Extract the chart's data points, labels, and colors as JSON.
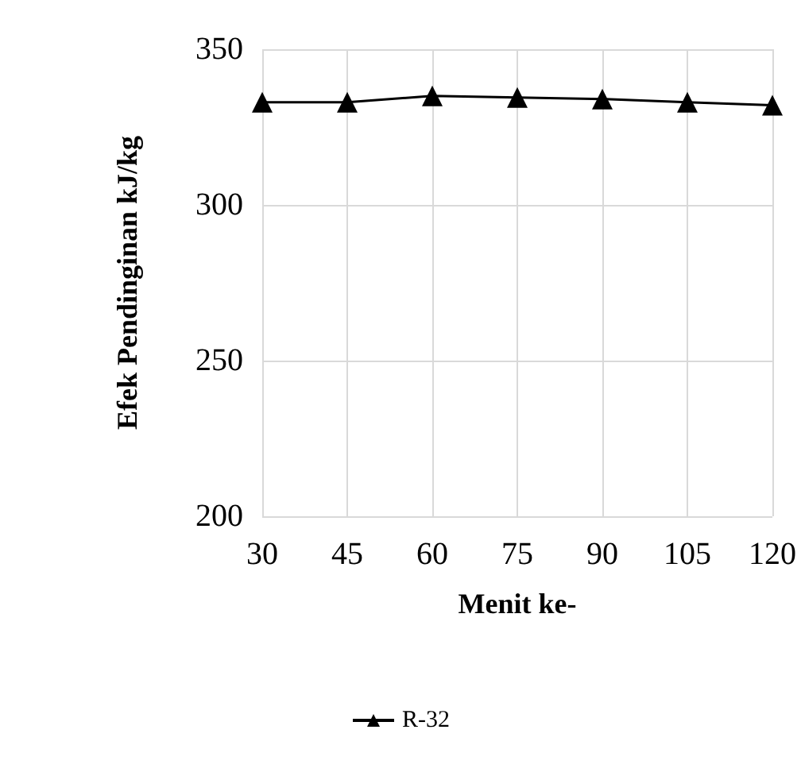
{
  "chart_data": {
    "type": "line",
    "xlabel": "Menit ke-",
    "ylabel": "Efek Pendinginan kJ/kg",
    "categories": [
      "30",
      "45",
      "60",
      "75",
      "90",
      "105",
      "120"
    ],
    "series": [
      {
        "name": "R-32",
        "color": "#000000",
        "values": [
          333,
          333,
          335,
          334.5,
          334,
          333,
          332
        ]
      }
    ],
    "ylim": [
      200,
      350
    ],
    "yticks": [
      200,
      250,
      300,
      350
    ],
    "grid": true,
    "legend": "bottom",
    "marker": "triangle",
    "line_style": "solid"
  }
}
